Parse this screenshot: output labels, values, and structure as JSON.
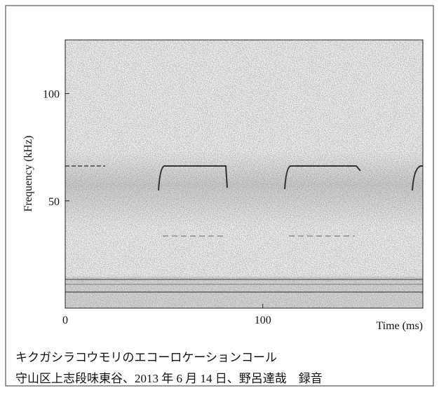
{
  "chart_data": {
    "type": "spectrogram",
    "xlabel": "Time (ms)",
    "ylabel": "Frequency (kHz)",
    "xlim": [
      0,
      181
    ],
    "ylim": [
      0,
      125
    ],
    "xticks": [
      0,
      100
    ],
    "yticks": [
      50,
      100
    ]
  },
  "caption": [
    "キクガシラコウモリのエコーロケーションコール",
    "守山区上志段味東谷、2013 年 6 月 14 日、野呂達哉　録音"
  ]
}
